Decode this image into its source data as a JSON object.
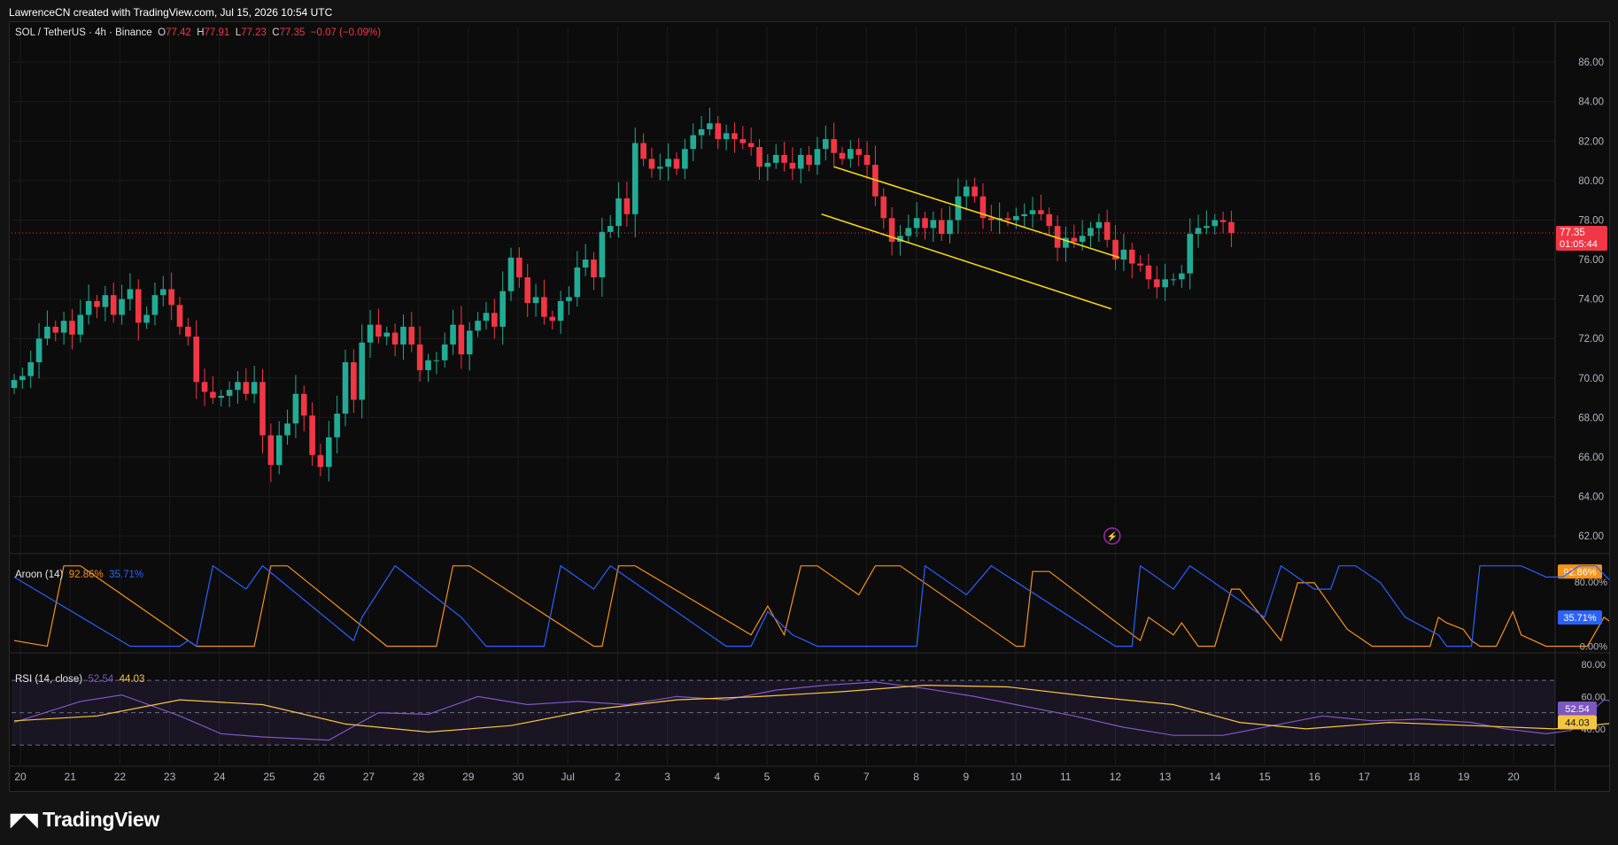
{
  "header": {
    "attribution": "LawrenceCN created with TradingView.com, Jul 15, 2026 10:54 UTC"
  },
  "price_legend": {
    "symbol": "SOL / TetherUS · 4h · Binance",
    "o_label": "O",
    "o": "77.42",
    "h_label": "H",
    "h": "77.91",
    "l_label": "L",
    "l": "77.23",
    "c_label": "C",
    "c": "77.35",
    "change": "−0.07 (−0.09%)"
  },
  "aroon_legend": {
    "name": "Aroon (14)",
    "up": "92.86%",
    "down": "35.71%"
  },
  "rsi_legend": {
    "name": "RSI (14, close)",
    "rsi": "52.54",
    "ma": "44.03"
  },
  "last_price": {
    "price": "77.35",
    "countdown": "01:05:44"
  },
  "logo": {
    "text": "TradingView",
    "icon": "tradingview-logo-icon"
  },
  "colors": {
    "up": "#22ab94",
    "down": "#f23645",
    "channel": "#f5d60e",
    "aroon_up": "#f7931a",
    "aroon_down": "#2962ff",
    "rsi": "#7e57c2",
    "rsi_ma": "#f5c542"
  },
  "chart_data": [
    {
      "type": "candlestick",
      "title": "SOL / TetherUS · 4h · Binance",
      "x_ticks": [
        "20",
        "21",
        "22",
        "23",
        "24",
        "25",
        "26",
        "27",
        "28",
        "29",
        "30",
        "Jul",
        "2",
        "3",
        "4",
        "5",
        "6",
        "7",
        "8",
        "9",
        "10",
        "11",
        "12",
        "13",
        "14",
        "15",
        "16",
        "17",
        "18",
        "19",
        "20"
      ],
      "y_ticks": [
        "62.00",
        "64.00",
        "66.00",
        "68.00",
        "70.00",
        "72.00",
        "74.00",
        "76.00",
        "78.00",
        "80.00",
        "82.00",
        "84.00",
        "86.00"
      ],
      "ylim": [
        61.2,
        87.8
      ],
      "close": [
        69.9,
        70.1,
        70.8,
        72.0,
        72.6,
        72.3,
        72.9,
        72.2,
        73.2,
        73.9,
        73.6,
        74.2,
        73.2,
        74.0,
        74.5,
        72.8,
        73.2,
        74.2,
        74.5,
        73.7,
        72.6,
        72.1,
        69.8,
        69.3,
        69.0,
        69.1,
        69.4,
        69.8,
        69.2,
        69.8,
        67.1,
        65.6,
        67.1,
        67.7,
        69.2,
        68.1,
        66.1,
        65.5,
        67.0,
        68.2,
        70.8,
        68.9,
        71.8,
        72.7,
        72.1,
        72.3,
        71.7,
        72.6,
        71.7,
        70.4,
        70.9,
        70.9,
        71.7,
        72.7,
        71.2,
        72.4,
        72.9,
        73.3,
        72.6,
        74.4,
        76.1,
        75.1,
        73.8,
        74.1,
        73.1,
        72.9,
        73.9,
        74.1,
        75.6,
        76.0,
        75.1,
        77.4,
        77.7,
        79.1,
        78.3,
        81.9,
        81.1,
        80.6,
        80.7,
        81.1,
        80.6,
        81.6,
        82.3,
        82.6,
        82.9,
        82.1,
        82.4,
        82.1,
        81.9,
        81.7,
        80.7,
        80.9,
        81.3,
        80.9,
        80.6,
        81.3,
        80.8,
        81.6,
        82.1,
        81.4,
        81.1,
        81.6,
        81.3,
        80.8,
        79.2,
        78.1,
        76.9,
        77.2,
        77.6,
        78.1,
        77.6,
        78.0,
        77.3,
        78.0,
        79.2,
        79.7,
        79.2,
        78.1,
        78.0,
        78.1,
        78.0,
        78.2,
        78.3,
        78.5,
        78.3,
        77.7,
        76.6,
        77.1,
        76.9,
        77.2,
        77.6,
        77.9,
        77.0,
        76.0,
        76.5,
        75.8,
        75.7,
        75.0,
        74.6,
        75.0,
        75.0,
        75.3,
        77.3,
        77.6,
        77.7,
        78.0,
        77.9,
        77.35
      ],
      "open_first": 69.5
    },
    {
      "type": "line",
      "title": "Aroon (14)",
      "y_ticks": [
        "0.00%",
        "80.00%"
      ],
      "ylim": [
        -6,
        113
      ],
      "series": [
        {
          "name": "Aroon Up",
          "color": "#f7931a",
          "last": 92.86,
          "points": [
            [
              0,
              7
            ],
            [
              4,
              0
            ],
            [
              6,
              100
            ],
            [
              8,
              100
            ],
            [
              22,
              0
            ],
            [
              29,
              0
            ],
            [
              31,
              100
            ],
            [
              33,
              100
            ],
            [
              45,
              0
            ],
            [
              51,
              0
            ],
            [
              53,
              100
            ],
            [
              55,
              100
            ],
            [
              70,
              0
            ],
            [
              71,
              0
            ],
            [
              73,
              100
            ],
            [
              75,
              100
            ],
            [
              89,
              14
            ],
            [
              91,
              50
            ],
            [
              93,
              14
            ],
            [
              95,
              100
            ],
            [
              97,
              100
            ],
            [
              102,
              64
            ],
            [
              104,
              100
            ],
            [
              107,
              100
            ],
            [
              121,
              0
            ],
            [
              122,
              0
            ],
            [
              123,
              93
            ],
            [
              125,
              93
            ],
            [
              136,
              7
            ],
            [
              137,
              36
            ],
            [
              140,
              14
            ],
            [
              141,
              29
            ],
            [
              143,
              0
            ],
            [
              145,
              0
            ],
            [
              147,
              71
            ],
            [
              148,
              71
            ],
            [
              153,
              7
            ],
            [
              155,
              79
            ],
            [
              157,
              79
            ],
            [
              161,
              21
            ],
            [
              164,
              0
            ],
            [
              169,
              0
            ],
            [
              171,
              0
            ],
            [
              172,
              36
            ],
            [
              173,
              29
            ],
            [
              175,
              21
            ],
            [
              176,
              7
            ],
            [
              177,
              0
            ],
            [
              179,
              0
            ],
            [
              181,
              43
            ],
            [
              182,
              14
            ],
            [
              185,
              0
            ],
            [
              190,
              0
            ],
            [
              192,
              36
            ],
            [
              195,
              14
            ],
            [
              197,
              100
            ],
            [
              198,
              93
            ]
          ]
        },
        {
          "name": "Aroon Down",
          "color": "#2962ff",
          "last": 35.71,
          "points": [
            [
              0,
              86
            ],
            [
              14,
              0
            ],
            [
              20,
              0
            ],
            [
              21,
              7
            ],
            [
              22,
              0
            ],
            [
              24,
              100
            ],
            [
              28,
              71
            ],
            [
              30,
              100
            ],
            [
              41,
              7
            ],
            [
              42,
              36
            ],
            [
              46,
              100
            ],
            [
              54,
              36
            ],
            [
              57,
              0
            ],
            [
              64,
              0
            ],
            [
              66,
              100
            ],
            [
              70,
              71
            ],
            [
              72,
              100
            ],
            [
              86,
              0
            ],
            [
              89,
              0
            ],
            [
              91,
              43
            ],
            [
              94,
              14
            ],
            [
              97,
              0
            ],
            [
              109,
              0
            ],
            [
              110,
              100
            ],
            [
              115,
              64
            ],
            [
              118,
              100
            ],
            [
              133,
              0
            ],
            [
              135,
              0
            ],
            [
              136,
              100
            ],
            [
              140,
              71
            ],
            [
              142,
              100
            ],
            [
              149,
              50
            ],
            [
              151,
              36
            ],
            [
              153,
              100
            ],
            [
              157,
              71
            ],
            [
              159,
              71
            ],
            [
              160,
              100
            ],
            [
              162,
              100
            ],
            [
              165,
              79
            ],
            [
              167,
              50
            ],
            [
              168,
              36
            ],
            [
              172,
              14
            ],
            [
              173,
              0
            ],
            [
              175,
              0
            ],
            [
              176,
              0
            ],
            [
              177,
              100
            ],
            [
              182,
              100
            ],
            [
              185,
              86
            ],
            [
              187,
              86
            ],
            [
              189,
              100
            ],
            [
              191,
              100
            ],
            [
              197,
              36
            ]
          ]
        }
      ]
    },
    {
      "type": "line",
      "title": "RSI (14, close)",
      "y_ticks": [
        "40.00",
        "60.00",
        "80.00"
      ],
      "ylim": [
        18,
        86
      ],
      "bands": [
        30,
        50,
        70
      ],
      "series": [
        {
          "name": "RSI",
          "color": "#7e57c2",
          "last": 52.54,
          "points": [
            [
              0,
              44
            ],
            [
              8,
              57
            ],
            [
              13,
              61
            ],
            [
              20,
              48
            ],
            [
              25,
              37
            ],
            [
              30,
              35
            ],
            [
              38,
              33
            ],
            [
              44,
              50
            ],
            [
              50,
              49
            ],
            [
              56,
              60
            ],
            [
              62,
              55
            ],
            [
              68,
              57
            ],
            [
              74,
              55
            ],
            [
              80,
              60
            ],
            [
              86,
              58
            ],
            [
              92,
              64
            ],
            [
              98,
              67
            ],
            [
              104,
              69
            ],
            [
              110,
              65
            ],
            [
              116,
              60
            ],
            [
              122,
              54
            ],
            [
              128,
              48
            ],
            [
              134,
              41
            ],
            [
              140,
              36
            ],
            [
              146,
              36
            ],
            [
              152,
              42
            ],
            [
              158,
              48
            ],
            [
              164,
              45
            ],
            [
              170,
              46
            ],
            [
              176,
              44
            ],
            [
              180,
              40
            ],
            [
              185,
              37
            ],
            [
              188,
              39
            ],
            [
              192,
              58
            ],
            [
              195,
              56
            ],
            [
              198,
              55
            ]
          ]
        },
        {
          "name": "RSI-based MA",
          "color": "#f5c542",
          "last": 44.03,
          "points": [
            [
              0,
              45
            ],
            [
              10,
              48
            ],
            [
              20,
              58
            ],
            [
              30,
              55
            ],
            [
              40,
              43
            ],
            [
              50,
              38
            ],
            [
              60,
              42
            ],
            [
              70,
              52
            ],
            [
              80,
              58
            ],
            [
              90,
              60
            ],
            [
              100,
              63
            ],
            [
              110,
              67
            ],
            [
              120,
              66
            ],
            [
              130,
              60
            ],
            [
              140,
              55
            ],
            [
              148,
              44
            ],
            [
              156,
              40
            ],
            [
              166,
              44
            ],
            [
              176,
              42
            ],
            [
              186,
              40
            ],
            [
              194,
              44
            ],
            [
              198,
              45
            ]
          ]
        }
      ]
    }
  ]
}
